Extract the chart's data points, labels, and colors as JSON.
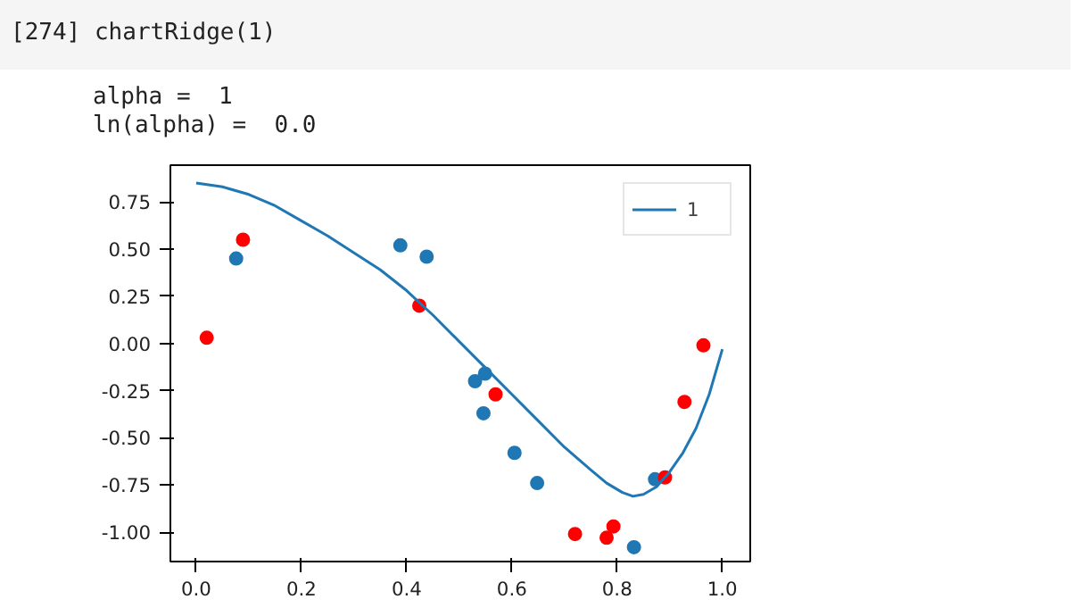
{
  "chart_data": {
    "type": "scatter",
    "annotations": [
      "[274] chartRidge(1)",
      "alpha =  1",
      "ln(alpha) =  0.0"
    ],
    "xlim": [
      -0.049,
      1.053
    ],
    "ylim": [
      -1.156,
      0.945
    ],
    "xticks": [
      {
        "value": 0,
        "label": "0.0"
      },
      0.2,
      0.4,
      0.6,
      0.8,
      {
        "value": 1,
        "label": "1.0"
      }
    ],
    "yticks": [
      {
        "value": -1,
        "label": "-1.00"
      },
      {
        "value": -0.75,
        "label": "-0.75"
      },
      {
        "value": -0.5,
        "label": "-0.50"
      },
      {
        "value": -0.25,
        "label": "-0.25"
      },
      {
        "value": 0,
        "label": "0.00"
      },
      {
        "value": 0.25,
        "label": "0.25"
      },
      {
        "value": 0.5,
        "label": "0.50"
      },
      {
        "value": 0.75,
        "label": "0.75"
      }
    ],
    "grid": false,
    "legend": "top right",
    "series": [
      {
        "marker": "circle",
        "color": "#1f77b4",
        "x": [
          0.076,
          0.388,
          0.438,
          0.53,
          0.549,
          0.546,
          0.605,
          0.648,
          0.872,
          0.832
        ],
        "values": [
          0.45,
          0.52,
          0.46,
          -0.2,
          -0.16,
          -0.37,
          -0.58,
          -0.74,
          -0.72,
          -1.08
        ]
      },
      {
        "marker": "circle",
        "color": "#ff0000",
        "x": [
          0.02,
          0.089,
          0.424,
          0.569,
          0.72,
          0.78,
          0.793,
          0.891,
          0.928,
          0.964
        ],
        "values": [
          0.03,
          0.55,
          0.2,
          -0.27,
          -1.01,
          -1.03,
          -0.97,
          -0.71,
          -0.31,
          -0.01
        ]
      },
      {
        "type": "line",
        "name": "1",
        "color": "#1f77b4",
        "x": [
          0,
          0.05,
          0.1,
          0.15,
          0.2,
          0.25,
          0.3,
          0.35,
          0.4,
          0.45,
          0.5,
          0.55,
          0.6,
          0.65,
          0.7,
          0.75,
          0.78,
          0.81,
          0.83,
          0.85,
          0.875,
          0.9,
          0.925,
          0.95,
          0.975,
          1.0
        ],
        "values": [
          0.85,
          0.83,
          0.79,
          0.73,
          0.65,
          0.57,
          0.48,
          0.39,
          0.28,
          0.15,
          0.01,
          -0.13,
          -0.27,
          -0.41,
          -0.55,
          -0.67,
          -0.74,
          -0.79,
          -0.81,
          -0.8,
          -0.76,
          -0.68,
          -0.58,
          -0.45,
          -0.27,
          -0.03
        ]
      }
    ]
  }
}
